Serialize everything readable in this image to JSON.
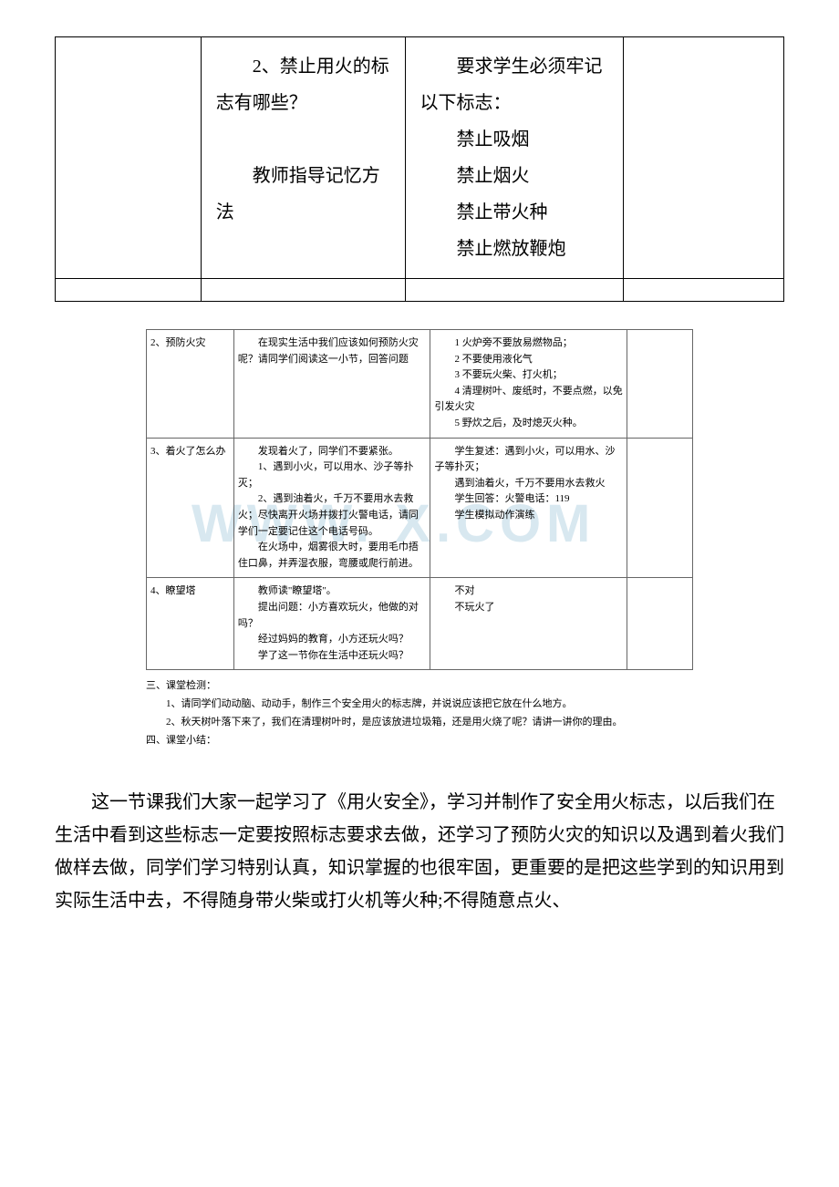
{
  "top_table": {
    "row1": {
      "c1": "",
      "c2_line1": "2、禁止用火的标志有哪些？",
      "c2_line2": "教师指导记忆方法",
      "c3_intro": "要求学生必须牢记以下标志：",
      "c3_item1": "禁止吸烟",
      "c3_item2": "禁止烟火",
      "c3_item3": "禁止带火种",
      "c3_item4": "禁止燃放鞭炮",
      "c4": ""
    },
    "row2": {
      "c1": "",
      "c2": "",
      "c3": "",
      "c4": ""
    }
  },
  "watermark": "WWW.             X.COM",
  "embedded": {
    "rows": [
      {
        "c1": "2、预防火灾",
        "c2": "　　在现实生活中我们应该如何预防火灾呢？请同学们阅读这一小节，回答问题",
        "c3_lines": [
          "　　1 火炉旁不要放易燃物品；",
          "　　2 不要使用液化气",
          "　　3 不要玩火柴、打火机；",
          "　　4 清理树叶、废纸时，不要点燃，以免引发火灾",
          "　　5 野炊之后，及时熄灭火种。"
        ],
        "c4": ""
      },
      {
        "c1": "3、着火了怎么办",
        "c2_lines": [
          "　　发现着火了，同学们不要紧张。",
          "　　1、遇到小火，可以用水、沙子等扑灭；",
          "　　2、遇到油着火，千万不要用水去救火；尽快离开火场并拨打火警电话，请同学们一定要记住这个电话号码。",
          "　　在火场中，烟雾很大时，要用毛巾捂住口鼻，并弄湿衣服，弯腰或爬行前进。"
        ],
        "c3_lines": [
          "　　学生复述：遇到小火，可以用水、沙子等扑灭；",
          "",
          "　　遇到油着火，千万不要用水去救火",
          "",
          "　　学生回答：火警电话：119",
          "",
          "",
          "　　学生模拟动作演练"
        ],
        "c4": ""
      },
      {
        "c1": "4、瞭望塔",
        "c2_lines": [
          "　　教师读\"瞭望塔\"。",
          "　　提出问题：小方喜欢玩火，他做的对吗？",
          "　　经过妈妈的教育，小方还玩火吗？",
          "　　学了这一节你在生活中还玩火吗？"
        ],
        "c3_lines": [
          "",
          "　　不对",
          "",
          "",
          "　　不玩火了"
        ],
        "c4": ""
      }
    ],
    "footer": {
      "h1": "三、课堂检测：",
      "p1": "1、请同学们动动脑、动动手，制作三个安全用火的标志牌，并说说应该把它放在什么地方。",
      "p2": "2、秋天树叶落下来了，我们在清理树叶时，是应该放进垃圾箱，还是用火烧了呢？请讲一讲你的理由。",
      "h2": "四、课堂小结："
    }
  },
  "bottom_paragraph": "这一节课我们大家一起学习了《用火安全》，学习并制作了安全用火标志，以后我们在生活中看到这些标志一定要按照标志要求去做，还学习了预防火灾的知识以及遇到着火我们做样去做，同学们学习特别认真，知识掌握的也很牢固，更重要的是把这些学到的知识用到实际生活中去，不得随身带火柴或打火机等火种;不得随意点火、"
}
